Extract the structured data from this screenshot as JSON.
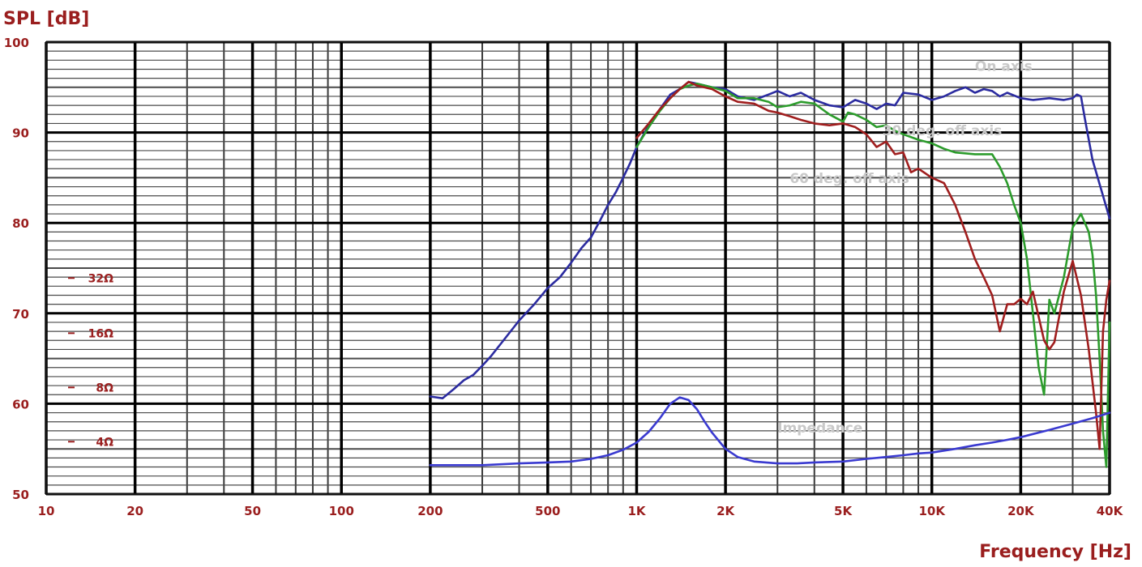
{
  "chart_data": {
    "type": "line",
    "title": "",
    "xlabel": "Frequency  [Hz]",
    "ylabel": "SPL  [dB]",
    "x_scale": "log",
    "xlim": [
      10,
      40000
    ],
    "ylim": [
      50,
      100
    ],
    "grid": true,
    "x_ticks": [
      {
        "v": 10,
        "label": "10"
      },
      {
        "v": 20,
        "label": "20"
      },
      {
        "v": 50,
        "label": "50"
      },
      {
        "v": 100,
        "label": "100"
      },
      {
        "v": 200,
        "label": "200"
      },
      {
        "v": 500,
        "label": "500"
      },
      {
        "v": 1000,
        "label": "1K"
      },
      {
        "v": 2000,
        "label": "2K"
      },
      {
        "v": 5000,
        "label": "5K"
      },
      {
        "v": 10000,
        "label": "10K"
      },
      {
        "v": 20000,
        "label": "20K"
      },
      {
        "v": 40000,
        "label": "40K"
      }
    ],
    "y_ticks": [
      {
        "v": 50,
        "label": "50"
      },
      {
        "v": 60,
        "label": "60"
      },
      {
        "v": 70,
        "label": "70"
      },
      {
        "v": 80,
        "label": "80"
      },
      {
        "v": 90,
        "label": "90"
      },
      {
        "v": 100,
        "label": "100"
      }
    ],
    "impedance_ticks": [
      {
        "v": 73.9,
        "label": "32Ω"
      },
      {
        "v": 67.8,
        "label": "16Ω"
      },
      {
        "v": 61.8,
        "label": "8Ω"
      },
      {
        "v": 55.8,
        "label": "4Ω"
      }
    ],
    "series": [
      {
        "name": "On axis",
        "color": "#2b2ba0",
        "label_at": [
          14000,
          96.8
        ],
        "x": [
          200,
          220,
          240,
          260,
          280,
          300,
          320,
          350,
          400,
          450,
          500,
          550,
          600,
          650,
          700,
          750,
          800,
          850,
          900,
          950,
          1000,
          1100,
          1200,
          1300,
          1400,
          1500,
          1600,
          1800,
          2000,
          2200,
          2500,
          2800,
          3000,
          3300,
          3600,
          4000,
          4500,
          5000,
          5500,
          6000,
          6500,
          7000,
          7500,
          8000,
          9000,
          10000,
          11000,
          12000,
          13000,
          14000,
          15000,
          16000,
          17000,
          18000,
          20000,
          22000,
          25000,
          28000,
          30000,
          31000,
          32000,
          33000,
          35000,
          38000,
          40000
        ],
        "y": [
          60.8,
          60.6,
          61.6,
          62.6,
          63.2,
          64.2,
          65.2,
          66.8,
          69.2,
          71.0,
          72.8,
          74.0,
          75.6,
          77.2,
          78.4,
          80.2,
          82.0,
          83.4,
          85.0,
          86.6,
          88.4,
          90.8,
          92.6,
          94.2,
          94.8,
          95.6,
          95.4,
          95.0,
          94.8,
          94.0,
          93.6,
          94.2,
          94.6,
          94.0,
          94.4,
          93.6,
          93.0,
          92.8,
          93.6,
          93.2,
          92.6,
          93.2,
          93.0,
          94.4,
          94.2,
          93.6,
          94.0,
          94.6,
          95.0,
          94.4,
          94.8,
          94.6,
          94.0,
          94.4,
          93.8,
          93.6,
          93.8,
          93.6,
          93.8,
          94.2,
          94.0,
          91.5,
          87.0,
          83.0,
          80.5
        ]
      },
      {
        "name": "30 deg. off axis",
        "color": "#2c9c2c",
        "label_at": [
          6800,
          89.7
        ],
        "x": [
          1000,
          1100,
          1200,
          1300,
          1400,
          1500,
          1600,
          1800,
          2000,
          2200,
          2500,
          2800,
          3000,
          3300,
          3600,
          4000,
          4500,
          5000,
          5200,
          5500,
          6000,
          6500,
          7000,
          7500,
          8000,
          9000,
          10000,
          11000,
          12000,
          14000,
          16000,
          17000,
          18000,
          19000,
          20000,
          21000,
          22000,
          23000,
          24000,
          25000,
          26000,
          28000,
          30000,
          32000,
          34000,
          35000,
          36000,
          37000,
          38000,
          39000,
          40000
        ],
        "y": [
          88.4,
          90.6,
          92.4,
          93.8,
          94.8,
          95.2,
          95.4,
          95.0,
          94.6,
          93.8,
          93.8,
          93.4,
          92.8,
          93.0,
          93.4,
          93.2,
          92.0,
          91.2,
          92.2,
          92.0,
          91.4,
          90.6,
          90.8,
          90.2,
          89.8,
          89.2,
          88.8,
          88.2,
          87.8,
          87.6,
          87.6,
          86.2,
          84.4,
          82.0,
          80.0,
          76.0,
          70.0,
          64.0,
          61.0,
          71.5,
          70.0,
          74.0,
          79.5,
          81.0,
          79.0,
          76.5,
          72.0,
          65.0,
          57.0,
          53.0,
          69.0
        ]
      },
      {
        "name": "60 deg. off axis",
        "color": "#a01e1e",
        "label_at": [
          3300,
          84.4
        ],
        "x": [
          1000,
          1100,
          1200,
          1300,
          1400,
          1500,
          1600,
          1800,
          2000,
          2200,
          2500,
          2800,
          3000,
          3300,
          3600,
          4000,
          4500,
          5000,
          5500,
          6000,
          6500,
          7000,
          7500,
          8000,
          8500,
          9000,
          10000,
          11000,
          12000,
          13000,
          14000,
          15000,
          16000,
          17000,
          18000,
          19000,
          20000,
          21000,
          22000,
          24000,
          25000,
          26000,
          28000,
          30000,
          32000,
          34000,
          36000,
          37000,
          38000,
          39000,
          40000
        ],
        "y": [
          89.4,
          91.0,
          92.6,
          93.8,
          94.8,
          95.6,
          95.2,
          94.8,
          94.0,
          93.4,
          93.2,
          92.4,
          92.2,
          91.8,
          91.4,
          91.0,
          90.8,
          91.0,
          90.6,
          89.8,
          88.4,
          89.0,
          87.6,
          87.8,
          85.6,
          86.0,
          85.0,
          84.4,
          82.0,
          79.0,
          76.0,
          74.0,
          72.0,
          68.0,
          71.0,
          71.0,
          71.6,
          71.0,
          72.4,
          67.0,
          66.0,
          66.8,
          72.4,
          75.8,
          72.0,
          66.0,
          59.0,
          55.0,
          68.0,
          71.5,
          73.6
        ]
      },
      {
        "name": "Impedance",
        "color": "#3a3ad0",
        "label_at": [
          3000,
          56.8
        ],
        "x": [
          200,
          300,
          400,
          500,
          600,
          700,
          800,
          900,
          1000,
          1100,
          1200,
          1300,
          1400,
          1500,
          1600,
          1700,
          1800,
          2000,
          2200,
          2500,
          3000,
          3500,
          4000,
          5000,
          6000,
          7000,
          8000,
          9000,
          10000,
          12000,
          14000,
          16000,
          18000,
          20000,
          25000,
          30000,
          35000,
          40000
        ],
        "y": [
          53.2,
          53.2,
          53.4,
          53.5,
          53.6,
          53.9,
          54.3,
          54.9,
          55.7,
          56.9,
          58.4,
          60.0,
          60.7,
          60.4,
          59.4,
          58.0,
          56.8,
          55.0,
          54.1,
          53.6,
          53.4,
          53.4,
          53.5,
          53.6,
          53.9,
          54.1,
          54.3,
          54.5,
          54.6,
          55.0,
          55.4,
          55.7,
          56.0,
          56.3,
          57.1,
          57.8,
          58.4,
          59.0
        ]
      }
    ]
  }
}
